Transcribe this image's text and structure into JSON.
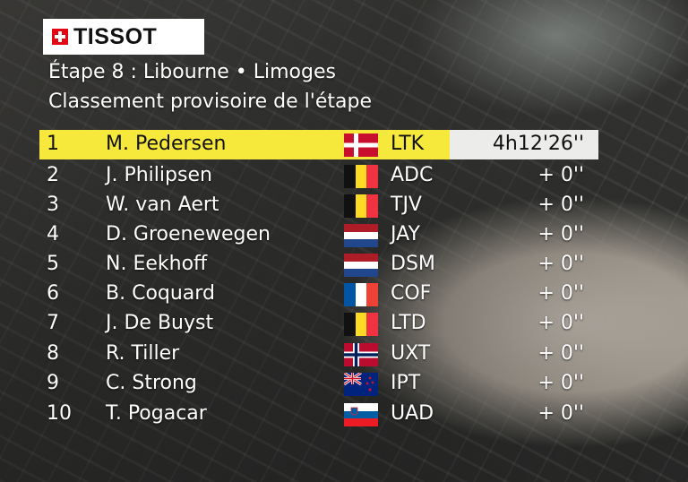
{
  "sponsor": {
    "logo_text": "TISSOT"
  },
  "header": {
    "stage_line": "Étape 8 : Libourne • Limoges",
    "classification_line": "Classement provisoire de l'étape"
  },
  "colors": {
    "leader_bar": "#f7e93c",
    "time_box": "#ececea"
  },
  "standings": [
    {
      "pos": "1",
      "rider": "M. Pedersen",
      "flag": "denmark-flag",
      "team": "LTK",
      "time": "4h12'26''"
    },
    {
      "pos": "2",
      "rider": "J. Philipsen",
      "flag": "belgium-flag",
      "team": "ADC",
      "time": "+ 0''"
    },
    {
      "pos": "3",
      "rider": "W. van Aert",
      "flag": "belgium-flag",
      "team": "TJV",
      "time": "+ 0''"
    },
    {
      "pos": "4",
      "rider": "D. Groenewegen",
      "flag": "netherlands-flag",
      "team": "JAY",
      "time": "+ 0''"
    },
    {
      "pos": "5",
      "rider": "N. Eekhoff",
      "flag": "netherlands-flag",
      "team": "DSM",
      "time": "+ 0''"
    },
    {
      "pos": "6",
      "rider": "B. Coquard",
      "flag": "france-flag",
      "team": "COF",
      "time": "+ 0''"
    },
    {
      "pos": "7",
      "rider": "J. De Buyst",
      "flag": "belgium-flag",
      "team": "LTD",
      "time": "+ 0''"
    },
    {
      "pos": "8",
      "rider": "R. Tiller",
      "flag": "norway-flag",
      "team": "UXT",
      "time": "+ 0''"
    },
    {
      "pos": "9",
      "rider": "C. Strong",
      "flag": "new-zealand-flag",
      "team": "IPT",
      "time": "+ 0''"
    },
    {
      "pos": "10",
      "rider": "T. Pogacar",
      "flag": "slovenia-flag",
      "team": "UAD",
      "time": "+ 0''"
    }
  ]
}
